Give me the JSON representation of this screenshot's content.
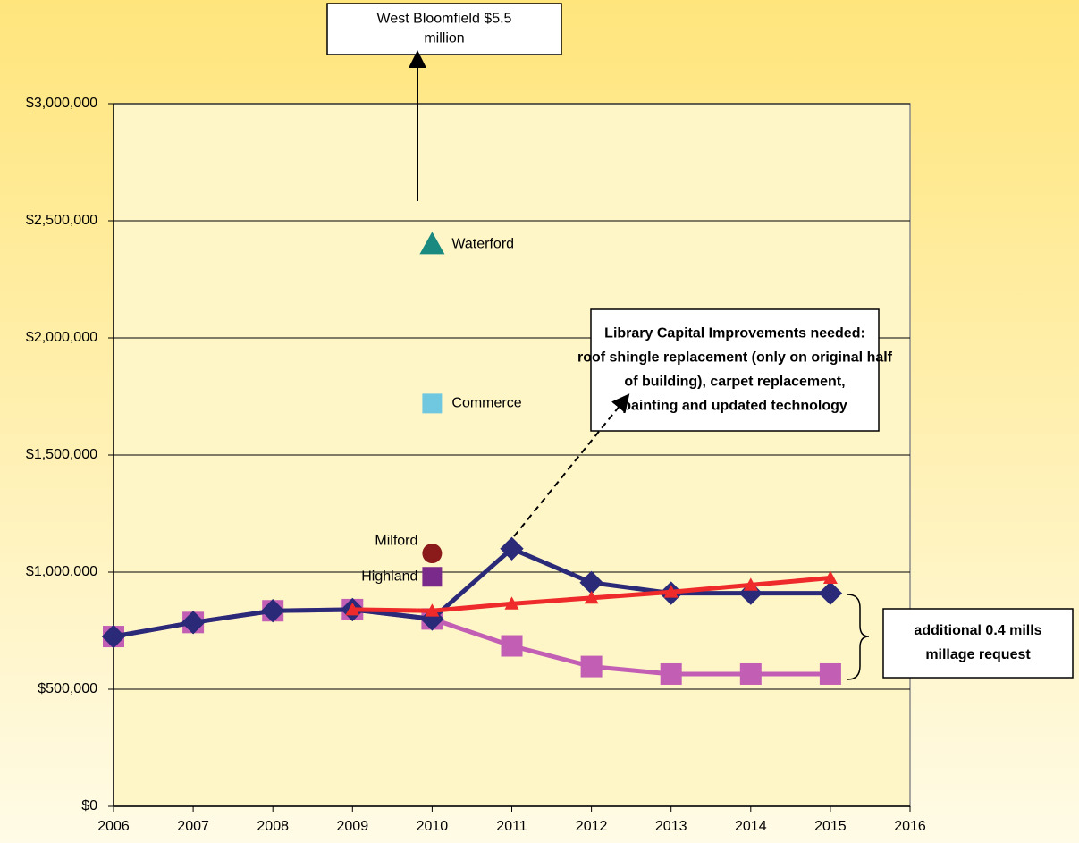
{
  "chart_data": {
    "type": "line",
    "x": [
      2006,
      2007,
      2008,
      2009,
      2010,
      2011,
      2012,
      2013,
      2014,
      2015
    ],
    "xlim": [
      2006,
      2016
    ],
    "xticks": [
      2006,
      2007,
      2008,
      2009,
      2010,
      2011,
      2012,
      2013,
      2014,
      2015,
      2016
    ],
    "ylim": [
      0,
      3000000
    ],
    "yticks": [
      {
        "value": 0,
        "label": "$0"
      },
      {
        "value": 500000,
        "label": "$500,000"
      },
      {
        "value": 1000000,
        "label": "$1,000,000"
      },
      {
        "value": 1500000,
        "label": "$1,500,000"
      },
      {
        "value": 2000000,
        "label": "$2,000,000"
      },
      {
        "value": 2500000,
        "label": "$2,500,000"
      },
      {
        "value": 3000000,
        "label": "$3,000,000"
      }
    ],
    "grid": true,
    "series": [
      {
        "color": "#c25fb4",
        "marker": "square",
        "values": [
          725000,
          785000,
          835000,
          840000,
          800000,
          685000,
          597000,
          565000,
          565000,
          565000
        ]
      },
      {
        "color": "#2a2a78",
        "marker": "diamond",
        "values": [
          725000,
          785000,
          835000,
          840000,
          800000,
          1100000,
          955000,
          910000,
          910000,
          910000
        ]
      },
      {
        "color": "#ee2a2a",
        "marker": "triangle",
        "values": [
          null,
          null,
          null,
          840000,
          835000,
          865000,
          890000,
          915000,
          945000,
          975000
        ]
      }
    ],
    "points": [
      {
        "label": "Waterford",
        "x": 2010,
        "value": 2400000,
        "color": "#1a8a80",
        "marker": "triangle"
      },
      {
        "label": "Commerce",
        "x": 2010,
        "value": 1720000,
        "color": "#70c8e0",
        "marker": "square"
      },
      {
        "label": "Milford",
        "x": 2010,
        "value": 1080000,
        "color": "#8b1a1a",
        "marker": "circle"
      },
      {
        "label": "Highland",
        "x": 2010,
        "value": 980000,
        "color": "#7a2a8a",
        "marker": "square"
      }
    ],
    "annotations": [
      {
        "lines": [
          "West Bloomfield $5.5",
          "million"
        ]
      },
      {
        "lines": [
          "Library Capital Improvements needed:",
          "roof shingle replacement (only on original half",
          "of building), carpet replacement,",
          "painting and updated technology"
        ]
      },
      {
        "lines": [
          "additional 0.4 mills",
          "millage request"
        ]
      }
    ]
  }
}
